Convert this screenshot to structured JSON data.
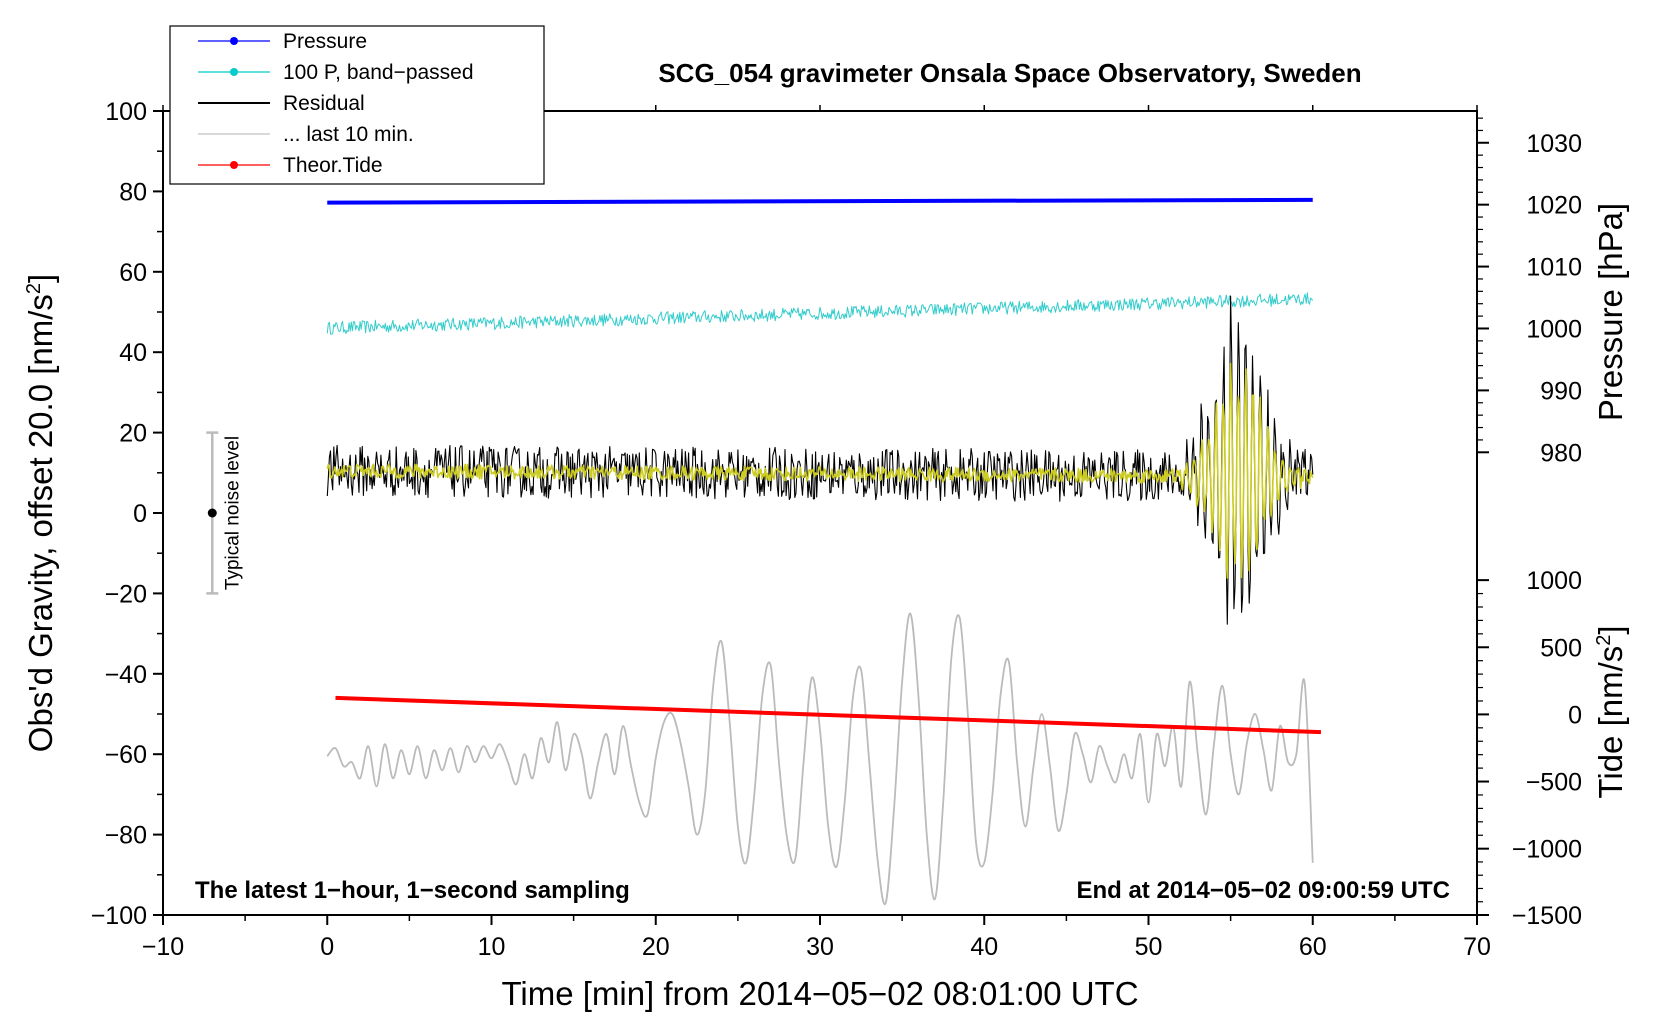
{
  "chart_data": {
    "type": "line",
    "title": "SCG_054 gravimeter Onsala Space Observatory, Sweden",
    "xlabel": "Time [min] from 2014−05−02 08:01:00 UTC",
    "ylabel_left": "Obs'd Gravity, offset 20.0 [nm/s",
    "ylabel_left_sup": "2",
    "ylabel_left_end": "]",
    "ylabel_pressure": "Pressure [hPa]",
    "ylabel_tide": "Tide [nm/s",
    "ylabel_tide_sup": "2",
    "ylabel_tide_end": "]",
    "xlim": [
      -10,
      70
    ],
    "ylim": [
      -100,
      100
    ],
    "x_ticks": [
      {
        "v": -10,
        "label": "−10"
      },
      {
        "v": 0,
        "label": "0"
      },
      {
        "v": 10,
        "label": "10"
      },
      {
        "v": 20,
        "label": "20"
      },
      {
        "v": 30,
        "label": "30"
      },
      {
        "v": 40,
        "label": "40"
      },
      {
        "v": 50,
        "label": "50"
      },
      {
        "v": 60,
        "label": "60"
      },
      {
        "v": 70,
        "label": "70"
      }
    ],
    "y_ticks": [
      {
        "v": 100,
        "label": "100"
      },
      {
        "v": 80,
        "label": "80"
      },
      {
        "v": 60,
        "label": "60"
      },
      {
        "v": 40,
        "label": "40"
      },
      {
        "v": 20,
        "label": "20"
      },
      {
        "v": 0,
        "label": "0"
      },
      {
        "v": -20,
        "label": "−20"
      },
      {
        "v": -40,
        "label": "−40"
      },
      {
        "v": -60,
        "label": "−60"
      },
      {
        "v": -80,
        "label": "−80"
      },
      {
        "v": -100,
        "label": "−100"
      }
    ],
    "pressure_axis": {
      "note": "tick values mapped to left-axis units",
      "ticks": [
        {
          "label": "1030",
          "y": 92.1
        },
        {
          "label": "1020",
          "y": 76.7
        },
        {
          "label": "1010",
          "y": 61.3
        },
        {
          "label": "1000",
          "y": 45.9
        },
        {
          "label": "990",
          "y": 30.5
        },
        {
          "label": "980",
          "y": 15.1
        }
      ]
    },
    "tide_axis": {
      "note": "tick values mapped to left-axis units",
      "ticks": [
        {
          "label": "1000",
          "y": -16.7
        },
        {
          "label": "500",
          "y": -33.4
        },
        {
          "label": "0",
          "y": -50.1
        },
        {
          "label": "−500",
          "y": -66.8
        },
        {
          "label": "−1000",
          "y": -83.5
        },
        {
          "label": "−1500",
          "y": -100
        }
      ]
    },
    "legend": [
      {
        "label": "Pressure",
        "color": "#0000ff",
        "marker": true
      },
      {
        "label": "100 P, band−passed",
        "color": "#00cccc",
        "marker": true
      },
      {
        "label": "Residual",
        "color": "#000000",
        "marker": false
      },
      {
        "label": "... last 10 min.",
        "color": "#c0c0c0",
        "marker": false
      },
      {
        "label": "Theor.Tide",
        "color": "#ff0000",
        "marker": true
      }
    ],
    "series": [
      {
        "name": "Pressure",
        "color": "#0000ff",
        "kind": "linear",
        "x": [
          0,
          60
        ],
        "y": [
          77.2,
          77.9
        ]
      },
      {
        "name": "100 P, band-passed",
        "color": "#33cccc",
        "kind": "noise",
        "x": [
          0,
          60
        ],
        "y": [
          46.0,
          53.3
        ],
        "amplitude": 1.6
      },
      {
        "name": "Residual",
        "color": "#000000",
        "kind": "noise",
        "x": [
          0,
          60
        ],
        "y": [
          10.5,
          9.0
        ],
        "amplitude": 6.5,
        "burst": {
          "start": 52,
          "end": 60,
          "peak_x": 55.5,
          "amplitude": 35,
          "period": 0.45
        }
      },
      {
        "name": "Residual smoothed",
        "color": "#cccc22",
        "kind": "noise",
        "x": [
          0,
          60
        ],
        "y": [
          10.5,
          9.0
        ],
        "amplitude": 1.8,
        "burst": {
          "start": 52,
          "end": 60,
          "peak_x": 55.5,
          "amplitude": 24,
          "period": 0.45
        }
      },
      {
        "name": "... last 10 min.",
        "color": "#bbbbbb",
        "kind": "points",
        "points": [
          [
            0,
            -60.5
          ],
          [
            0.5,
            -58.5
          ],
          [
            1.0,
            -63
          ],
          [
            1.5,
            -62
          ],
          [
            2.0,
            -66
          ],
          [
            2.5,
            -58
          ],
          [
            3.0,
            -68
          ],
          [
            3.5,
            -57.5
          ],
          [
            4.0,
            -66
          ],
          [
            4.5,
            -59
          ],
          [
            5.0,
            -65
          ],
          [
            5.5,
            -58
          ],
          [
            6.0,
            -66
          ],
          [
            6.5,
            -59
          ],
          [
            7.0,
            -64
          ],
          [
            7.5,
            -58.5
          ],
          [
            8.0,
            -64.5
          ],
          [
            8.5,
            -58
          ],
          [
            9.0,
            -62
          ],
          [
            9.5,
            -58
          ],
          [
            10.0,
            -61
          ],
          [
            10.5,
            -57.5
          ],
          [
            11.0,
            -62
          ],
          [
            11.5,
            -67.5
          ],
          [
            12.0,
            -60
          ],
          [
            12.5,
            -66
          ],
          [
            13.0,
            -56
          ],
          [
            13.5,
            -62
          ],
          [
            14.0,
            -52
          ],
          [
            14.5,
            -64
          ],
          [
            15.0,
            -55
          ],
          [
            15.5,
            -60
          ],
          [
            16.0,
            -71
          ],
          [
            16.5,
            -62
          ],
          [
            17.0,
            -55
          ],
          [
            17.5,
            -65
          ],
          [
            18.0,
            -53
          ],
          [
            18.5,
            -63
          ],
          [
            19.0,
            -72
          ],
          [
            19.5,
            -75
          ],
          [
            20.0,
            -61
          ],
          [
            20.5,
            -52
          ],
          [
            21.0,
            -50
          ],
          [
            21.5,
            -57
          ],
          [
            22.0,
            -68
          ],
          [
            22.5,
            -80
          ],
          [
            23.0,
            -70
          ],
          [
            23.5,
            -43
          ],
          [
            24.0,
            -32
          ],
          [
            24.5,
            -52
          ],
          [
            25.0,
            -78
          ],
          [
            25.5,
            -87
          ],
          [
            26.0,
            -70
          ],
          [
            26.5,
            -45
          ],
          [
            27.0,
            -38
          ],
          [
            27.5,
            -62
          ],
          [
            28.0,
            -81
          ],
          [
            28.5,
            -86
          ],
          [
            29.0,
            -62
          ],
          [
            29.5,
            -41
          ],
          [
            30.0,
            -54
          ],
          [
            30.5,
            -78
          ],
          [
            31.0,
            -88
          ],
          [
            31.5,
            -72
          ],
          [
            32.0,
            -46
          ],
          [
            32.5,
            -39
          ],
          [
            33.0,
            -62
          ],
          [
            33.5,
            -86
          ],
          [
            34.0,
            -97
          ],
          [
            34.5,
            -74
          ],
          [
            35.0,
            -42
          ],
          [
            35.5,
            -25
          ],
          [
            36.0,
            -46
          ],
          [
            36.5,
            -80
          ],
          [
            37.0,
            -96
          ],
          [
            37.5,
            -72
          ],
          [
            38.0,
            -36
          ],
          [
            38.5,
            -26
          ],
          [
            39.0,
            -50
          ],
          [
            39.5,
            -82
          ],
          [
            40.0,
            -87
          ],
          [
            40.5,
            -70
          ],
          [
            41.0,
            -45
          ],
          [
            41.5,
            -37
          ],
          [
            42.0,
            -62
          ],
          [
            42.5,
            -78
          ],
          [
            43.0,
            -63
          ],
          [
            43.5,
            -50
          ],
          [
            44.0,
            -63
          ],
          [
            44.5,
            -79
          ],
          [
            45.0,
            -70
          ],
          [
            45.5,
            -55
          ],
          [
            46.0,
            -60
          ],
          [
            46.5,
            -67
          ],
          [
            47.0,
            -58
          ],
          [
            47.5,
            -63
          ],
          [
            48.0,
            -67
          ],
          [
            48.5,
            -60
          ],
          [
            49.0,
            -66
          ],
          [
            49.5,
            -55
          ],
          [
            50.0,
            -72
          ],
          [
            50.5,
            -55
          ],
          [
            51.0,
            -63
          ],
          [
            51.5,
            -53
          ],
          [
            52.0,
            -68
          ],
          [
            52.5,
            -42
          ],
          [
            53.0,
            -60
          ],
          [
            53.5,
            -75
          ],
          [
            54.0,
            -57
          ],
          [
            54.5,
            -43
          ],
          [
            55.0,
            -60
          ],
          [
            55.5,
            -70
          ],
          [
            56.0,
            -57
          ],
          [
            56.5,
            -50
          ],
          [
            57.0,
            -59
          ],
          [
            57.5,
            -69
          ],
          [
            58.0,
            -53
          ],
          [
            58.5,
            -62
          ],
          [
            59.0,
            -60
          ],
          [
            59.5,
            -42
          ],
          [
            60.0,
            -87
          ]
        ]
      },
      {
        "name": "Theor.Tide",
        "color": "#ff0000",
        "kind": "linear",
        "x": [
          0.5,
          60.5
        ],
        "y": [
          -46.0,
          -54.5
        ]
      }
    ],
    "noise_bar": {
      "label": "Typical noise level",
      "x": -7,
      "center": 0,
      "low": -20,
      "high": 20
    },
    "annotations": {
      "bottom_left": "The latest 1−hour, 1−second sampling",
      "bottom_right": "End at 2014−05−02 09:00:59 UTC"
    },
    "grid": false,
    "legend_position": "top-left"
  }
}
